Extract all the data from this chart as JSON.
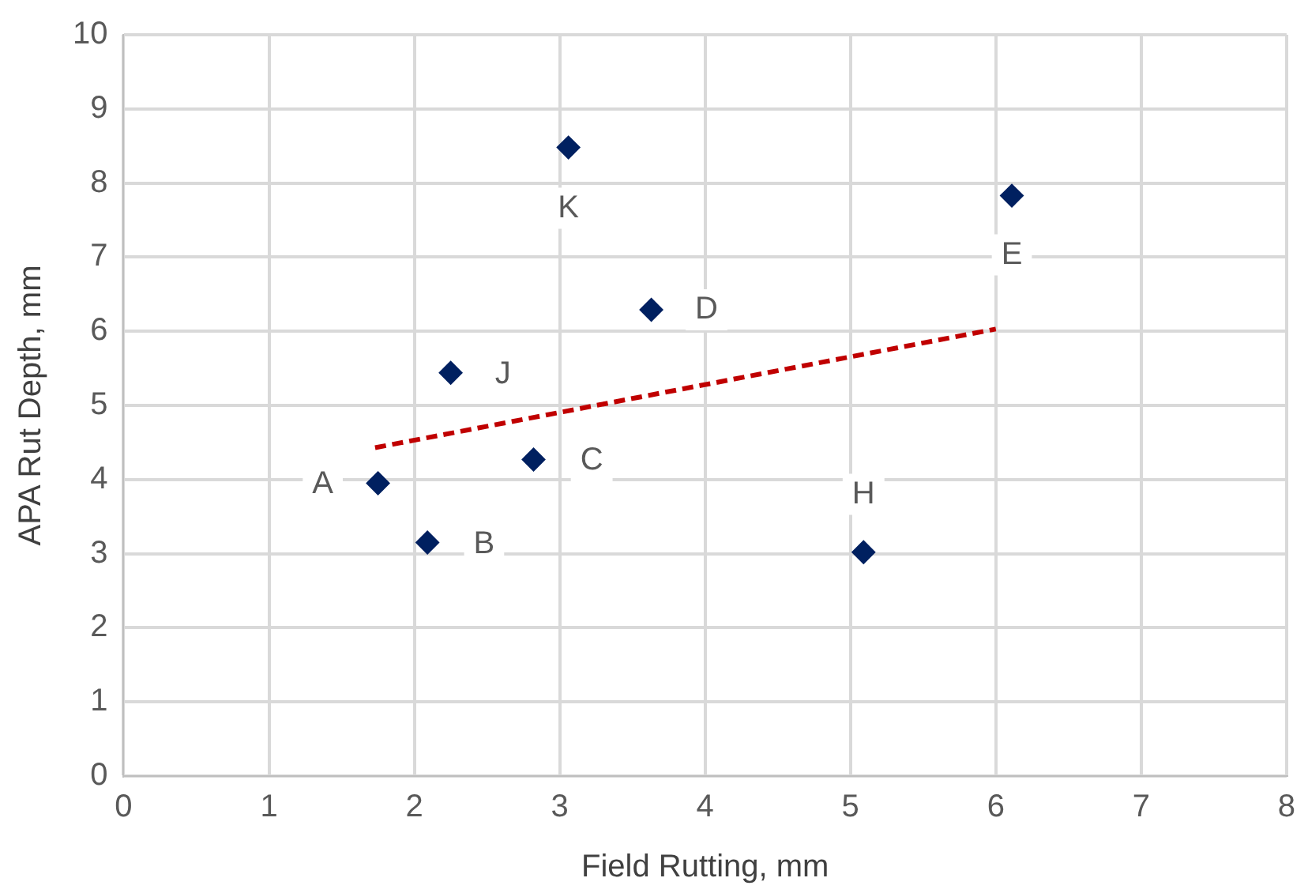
{
  "chart_data": {
    "type": "scatter",
    "xlabel": "Field Rutting, mm",
    "ylabel": "APA Rut Depth, mm",
    "xlim": [
      0,
      8
    ],
    "xticks": [
      0,
      1,
      2,
      3,
      4,
      5,
      6,
      7,
      8
    ],
    "ylim": [
      0,
      10
    ],
    "yticks": [
      0,
      1,
      2,
      3,
      4,
      5,
      6,
      7,
      8,
      9,
      10
    ],
    "grid": true,
    "legend": false,
    "series": [
      {
        "type": "scatter",
        "color": "#002060",
        "marker": "diamond",
        "x": [
          1.75,
          2.09,
          2.82,
          3.63,
          6.11,
          5.09,
          2.25,
          3.06
        ],
        "values": [
          3.95,
          3.15,
          4.27,
          6.29,
          7.83,
          3.02,
          5.44,
          8.48
        ]
      },
      {
        "type": "line",
        "color": "#c00000",
        "line_style": "dashed",
        "marker": "none",
        "x": [
          1.73,
          6.0
        ],
        "values": [
          4.43,
          6.03
        ]
      }
    ],
    "annotations": [
      {
        "text": "A",
        "x": 1.37,
        "y": 3.93
      },
      {
        "text": "B",
        "x": 2.48,
        "y": 3.12
      },
      {
        "text": "C",
        "x": 3.22,
        "y": 4.25
      },
      {
        "text": "D",
        "x": 4.01,
        "y": 6.29
      },
      {
        "text": "E",
        "x": 6.11,
        "y": 7.03
      },
      {
        "text": "H",
        "x": 5.09,
        "y": 3.8
      },
      {
        "text": "J",
        "x": 2.61,
        "y": 5.42
      },
      {
        "text": "K",
        "x": 3.06,
        "y": 7.66
      }
    ]
  }
}
